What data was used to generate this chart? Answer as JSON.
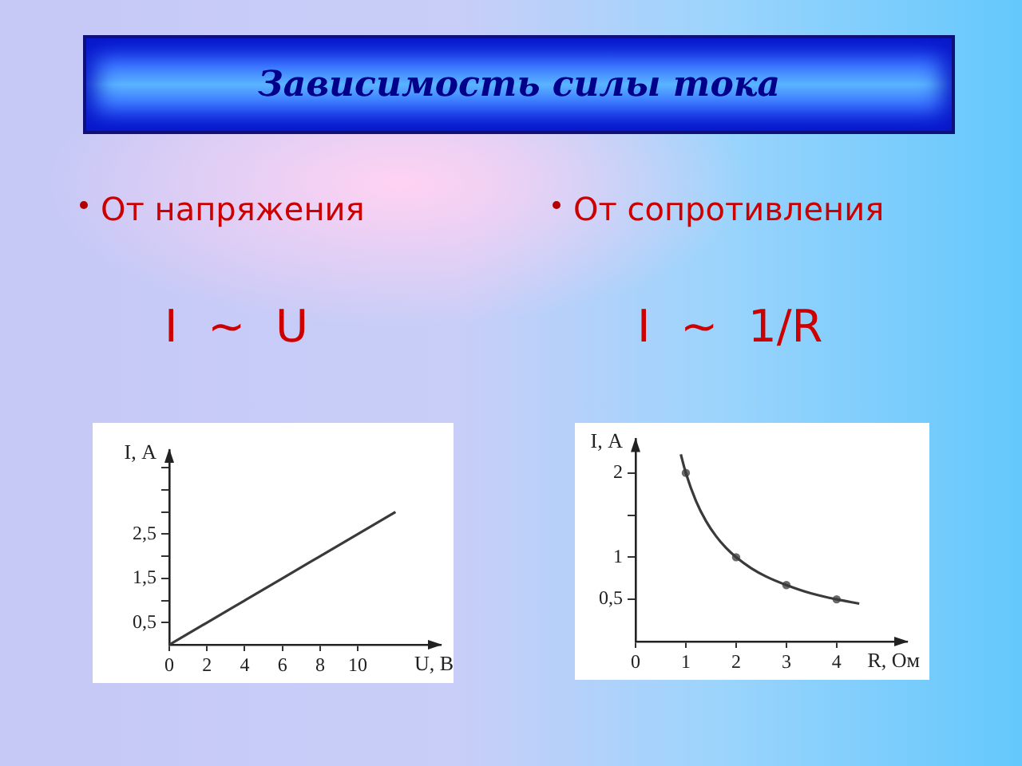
{
  "chart_data": [
    {
      "type": "other",
      "title": "Зависимость силы тока"
    },
    {
      "type": "line",
      "title": "От напряжения",
      "subtitle": "I ~ U",
      "xlabel": "U, В",
      "ylabel": "I, А",
      "x": [
        0,
        2,
        4,
        6,
        8,
        10,
        12
      ],
      "values": [
        0,
        0.5,
        1,
        1.5,
        2,
        2.5,
        3
      ],
      "color": "#3a3a3a",
      "xlim": [
        0,
        14.4
      ],
      "ylim": [
        0,
        4.4
      ],
      "xticks": [
        0,
        2,
        4,
        6,
        8,
        10
      ],
      "yticks": [
        {
          "value": 0.5,
          "label": "0,5"
        },
        {
          "value": 1,
          "label": null
        },
        {
          "value": 1.5,
          "label": "1,5"
        },
        {
          "value": 2,
          "label": null
        },
        {
          "value": 2.5,
          "label": "2,5"
        },
        {
          "value": 3,
          "label": null
        },
        {
          "value": 3.5,
          "label": null
        },
        {
          "value": 4,
          "label": null
        }
      ]
    },
    {
      "type": "line",
      "title": "От сопротивления",
      "subtitle": "I ~ 1/R",
      "xlabel": "R, Ом",
      "ylabel": "I, А",
      "series": [
        {
          "type": "line",
          "color": "#3a3a3a",
          "x": [
            0.9,
            1,
            1.2,
            1.4,
            1.6,
            1.8,
            2,
            2.3,
            2.6,
            3,
            3.5,
            4,
            4.45
          ],
          "values": [
            2.22,
            2,
            1.67,
            1.43,
            1.25,
            1.11,
            1,
            0.87,
            0.77,
            0.67,
            0.57,
            0.5,
            0.45
          ]
        },
        {
          "type": "scatter",
          "marker": "circle",
          "color": "#6a6a6a",
          "x": [
            1,
            2,
            3,
            4
          ],
          "values": [
            2,
            1,
            0.67,
            0.5
          ]
        }
      ],
      "xlim": [
        0,
        5.4
      ],
      "ylim": [
        0,
        2.4
      ],
      "xticks": [
        0,
        1,
        2,
        3,
        4
      ],
      "yticks": [
        {
          "value": 0.5,
          "label": "0,5"
        },
        1,
        {
          "value": 1.5,
          "label": null
        },
        2
      ]
    }
  ]
}
